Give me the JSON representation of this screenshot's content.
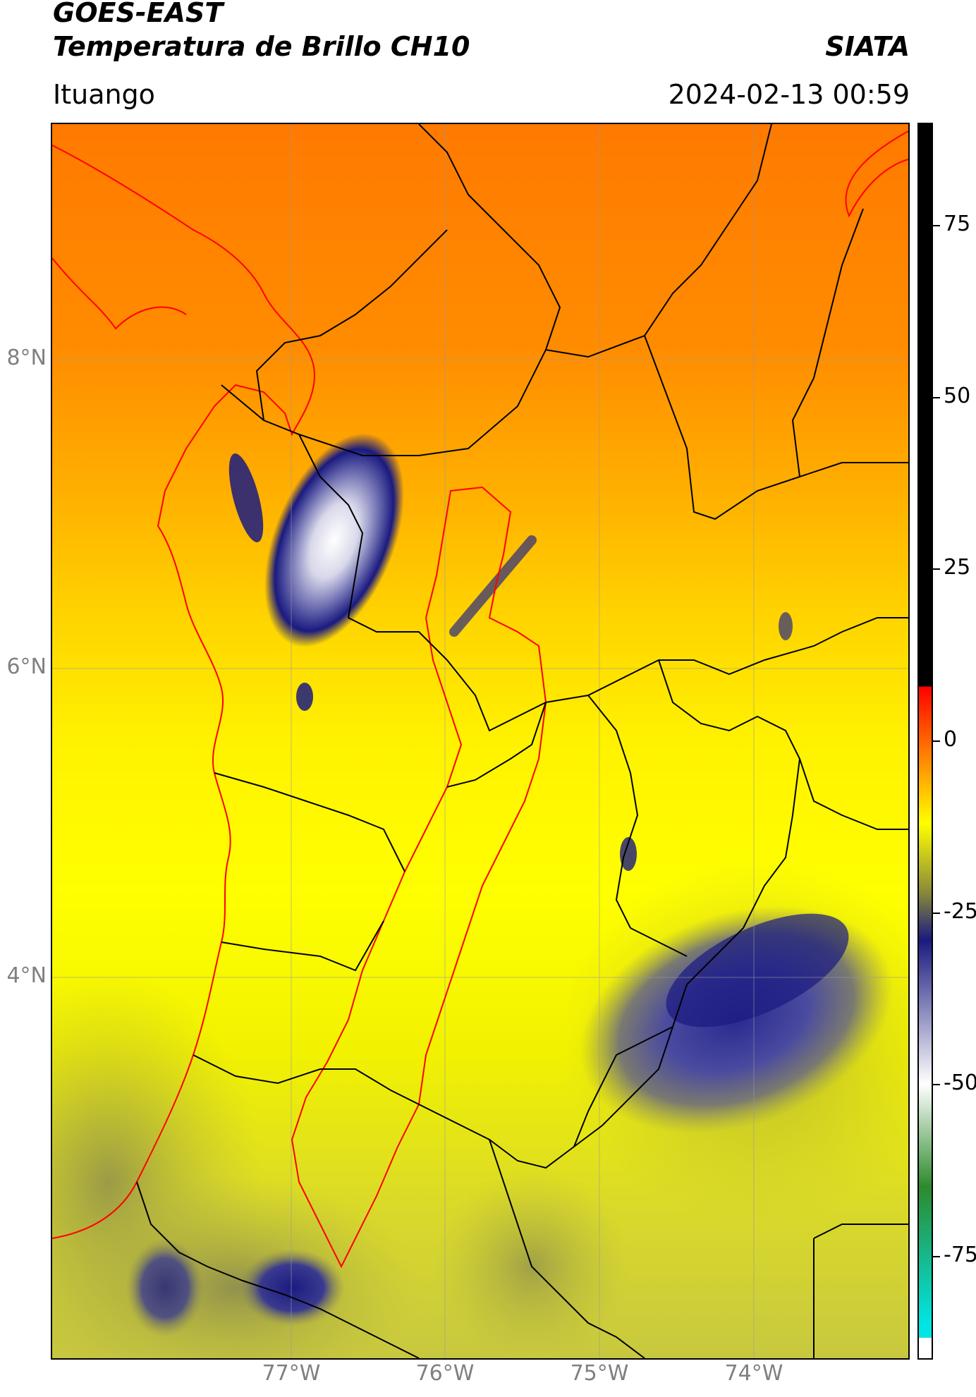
{
  "header": {
    "title_line1": "GOES-EAST",
    "title_line2": "Temperatura de Brillo CH10",
    "agency": "SIATA",
    "location": "Ituango",
    "timestamp": "2024-02-13 00:59"
  },
  "map": {
    "lat_labels": [
      "8°N",
      "6°N",
      "4°N"
    ],
    "lon_labels": [
      "77°W",
      "76°W",
      "75°W",
      "74°W"
    ],
    "gridlines": true
  },
  "colorbar": {
    "ticks": [
      "75",
      "50",
      "25",
      "0",
      "-25",
      "-50",
      "-75"
    ],
    "tick_values": [
      75,
      50,
      25,
      0,
      -25,
      -50,
      -75
    ],
    "range": [
      -90,
      90
    ],
    "colors": {
      "black": "#000000",
      "red": "#ff0000",
      "orange": "#ff8000",
      "yellow": "#ffff00",
      "olive": "#8a8a3a",
      "navy": "#1a1a80",
      "white": "#ffffff",
      "green": "#2d8a2d",
      "cyan": "#00e5e5"
    }
  },
  "colors": {
    "boundary_black": "#000000",
    "boundary_red": "#ff0000"
  }
}
